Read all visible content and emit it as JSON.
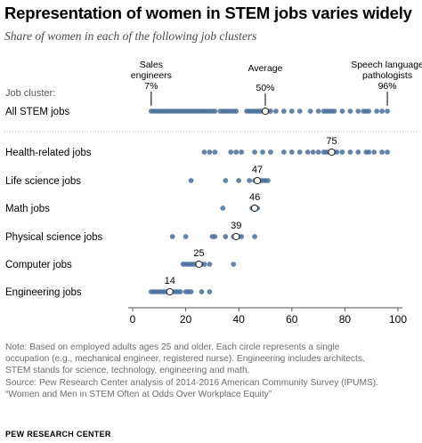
{
  "title": "Representation  of women in STEM jobs varies widely",
  "subtitle": "Share of women in each of the following job clusters",
  "chart_data": {
    "type": "scatter",
    "title": "Representation  of women in STEM jobs varies widely",
    "subtitle": "Share of women in each of the following job clusters",
    "xlim": [
      0,
      100
    ],
    "x_ticks": [
      0,
      20,
      40,
      60,
      80,
      100
    ],
    "row_header": "Job cluster:",
    "point_color": "#4a6f98",
    "highlight_color": "#ffffff",
    "annotations": [
      {
        "lines": [
          "Sales",
          "engineers",
          "7%"
        ],
        "x": 7
      },
      {
        "lines": [
          "Average",
          "50%"
        ],
        "x": 50
      },
      {
        "lines": [
          "Speech language",
          "pathologists",
          "96%"
        ],
        "x": 96
      }
    ],
    "series": [
      {
        "name": "All STEM jobs",
        "average": 50,
        "average_label": "",
        "values": [
          7,
          8,
          9,
          10,
          11,
          12,
          13,
          14,
          15,
          16,
          17,
          18,
          19,
          20,
          21,
          22,
          23,
          24,
          25,
          26,
          27,
          28,
          29,
          30,
          31,
          33,
          34,
          35,
          36,
          37,
          38,
          39,
          43,
          44,
          45,
          46,
          47,
          48,
          49,
          51,
          52,
          54,
          57,
          60,
          63,
          67,
          70,
          72,
          73,
          74,
          75,
          76,
          79,
          82,
          85,
          87,
          88,
          89,
          92,
          94,
          96
        ]
      },
      {
        "name": "Health-related jobs",
        "average": 75,
        "average_label": "75",
        "values": [
          27,
          29,
          31,
          37,
          39,
          41,
          46,
          49,
          52,
          57,
          60,
          63,
          66,
          68,
          70,
          72,
          73,
          74,
          76,
          77,
          79,
          82,
          85,
          88,
          89,
          91,
          94,
          96
        ]
      },
      {
        "name": "Life science jobs",
        "average": 47,
        "average_label": "47",
        "values": [
          22,
          35,
          40,
          44,
          46,
          48,
          49,
          50,
          51
        ]
      },
      {
        "name": "Math jobs",
        "average": 46,
        "average_label": "46",
        "values": [
          34,
          45,
          46,
          47
        ]
      },
      {
        "name": "Physical science jobs",
        "average": 39,
        "average_label": "39",
        "values": [
          15,
          20,
          30,
          31,
          35,
          38,
          40,
          41,
          46
        ]
      },
      {
        "name": "Computer jobs",
        "average": 25,
        "average_label": "25",
        "values": [
          19,
          20,
          21,
          22,
          23,
          24,
          26,
          27,
          29,
          38
        ]
      },
      {
        "name": "Engineering jobs",
        "average": 14,
        "average_label": "14",
        "values": [
          7,
          8,
          9,
          10,
          11,
          12,
          13,
          15,
          16,
          17,
          18,
          20,
          21,
          22,
          26,
          29
        ]
      }
    ]
  },
  "notes": [
    "Note: Based on employed adults ages 25 and older. Each circle represents a single",
    "occupation (e.g., mechanical engineer, registered nurse).  Engineering includes architects.",
    "STEM stands for science, technology, engineering and math.",
    "Source: Pew Research Center analysis of 2014-2016 American Community Survey (IPUMS).",
    "“Women and Men in STEM Often at Odds Over Workplace Equity”"
  ],
  "credit": "PEW RESEARCH CENTER"
}
